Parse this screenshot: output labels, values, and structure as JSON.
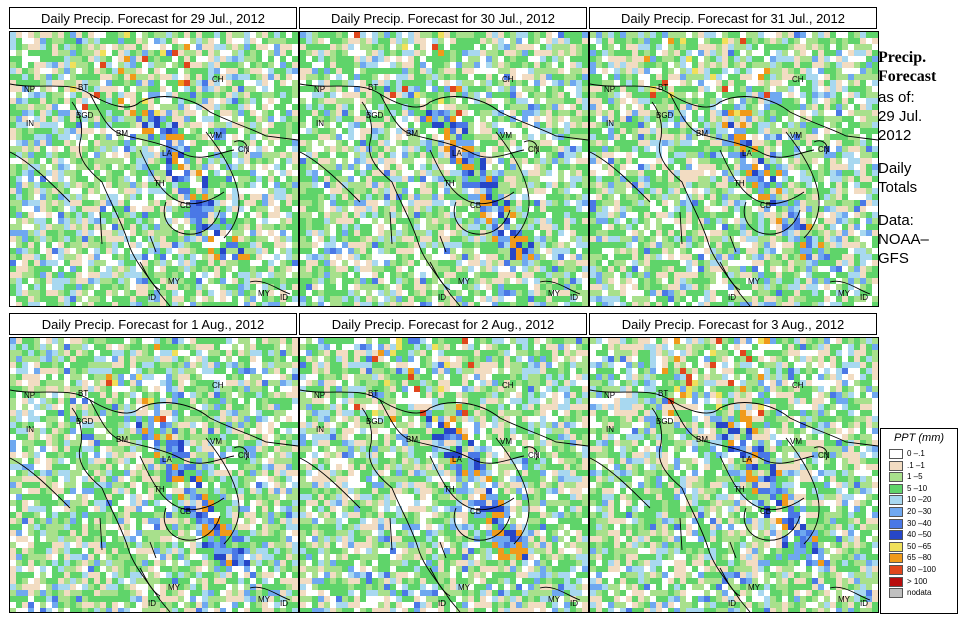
{
  "panels": [
    {
      "title": "Daily Precip. Forecast for  29 Jul., 2012",
      "seed": 11
    },
    {
      "title": "Daily Precip. Forecast for  30 Jul., 2012",
      "seed": 23
    },
    {
      "title": "Daily Precip. Forecast for  31 Jul., 2012",
      "seed": 37
    },
    {
      "title": "Daily Precip. Forecast for  1 Aug., 2012",
      "seed": 41
    },
    {
      "title": "Daily Precip. Forecast for  2 Aug., 2012",
      "seed": 53
    },
    {
      "title": "Daily Precip. Forecast for  3 Aug., 2012",
      "seed": 67
    }
  ],
  "country_labels": [
    "NP",
    "BT",
    "IN",
    "BGD",
    "CH",
    "BM",
    "VM",
    "CN",
    "LA",
    "TH",
    "CB",
    "MY",
    "ID",
    "MY",
    "ID"
  ],
  "sidebar": {
    "title_line1": "Precip.",
    "title_line2": "Forecast",
    "asof_label": "as of:",
    "asof_date1": "29 Jul.",
    "asof_date2": "2012",
    "totals1": "Daily",
    "totals2": "Totals",
    "data1": "Data:",
    "data2": "NOAA–",
    "data3": "GFS"
  },
  "legend": {
    "title": "PPT (mm)",
    "items": [
      {
        "label": "0 –.1",
        "color": "#ffffff"
      },
      {
        "label": ".1 –1",
        "color": "#f2dcc2"
      },
      {
        "label": "1 –5",
        "color": "#a8e08c"
      },
      {
        "label": "5 –10",
        "color": "#5fd46a"
      },
      {
        "label": "10 –20",
        "color": "#a8d8f0"
      },
      {
        "label": "20 –30",
        "color": "#6fa8f0"
      },
      {
        "label": "30 –40",
        "color": "#4a78e6"
      },
      {
        "label": "40 –50",
        "color": "#2646c8"
      },
      {
        "label": "50 –65",
        "color": "#f0e05a"
      },
      {
        "label": "65 –80",
        "color": "#f09a1a"
      },
      {
        "label": "80 –100",
        "color": "#e0461c"
      },
      {
        "label": "> 100",
        "color": "#b80c0c"
      },
      {
        "label": "nodata",
        "color": "#c0c0c0"
      }
    ]
  }
}
